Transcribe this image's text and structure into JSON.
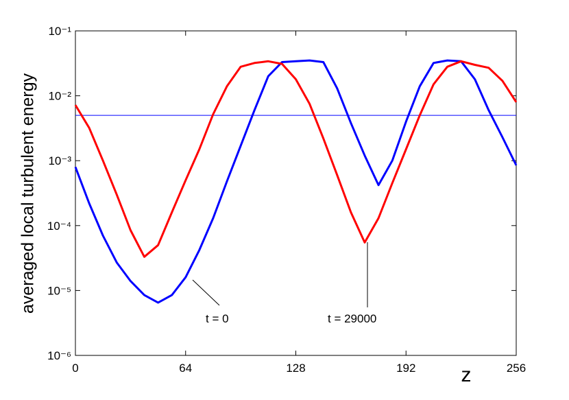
{
  "chart_data": {
    "type": "line",
    "ylabel": "averaged local turbulent energy",
    "xlabel": "z",
    "x": [
      0,
      8,
      16,
      24,
      32,
      40,
      48,
      56,
      64,
      72,
      80,
      88,
      96,
      104,
      112,
      120,
      128,
      136,
      144,
      152,
      160,
      168,
      176,
      184,
      192,
      200,
      208,
      216,
      224,
      232,
      240,
      248,
      256
    ],
    "series": [
      {
        "name": "t = 0",
        "color": "#0000ff",
        "values": [
          0.0008,
          0.00022,
          7e-05,
          2.7e-05,
          1.4e-05,
          8.5e-06,
          6.5e-06,
          8.5e-06,
          1.6e-05,
          4.2e-05,
          0.00013,
          0.00048,
          0.0017,
          0.006,
          0.02,
          0.033,
          0.034,
          0.035,
          0.033,
          0.013,
          0.0038,
          0.0012,
          0.00042,
          0.001,
          0.004,
          0.014,
          0.032,
          0.035,
          0.034,
          0.018,
          0.006,
          0.0023,
          0.00085
        ]
      },
      {
        "name": "t = 29000",
        "color": "#ff0000",
        "values": [
          0.0072,
          0.0032,
          0.001,
          0.0003,
          8.5e-05,
          3.3e-05,
          5e-05,
          0.00016,
          0.0005,
          0.0015,
          0.0052,
          0.014,
          0.028,
          0.032,
          0.034,
          0.031,
          0.018,
          0.0075,
          0.0022,
          0.0006,
          0.00016,
          5.5e-05,
          0.00013,
          0.00045,
          0.0015,
          0.005,
          0.015,
          0.028,
          0.034,
          0.03,
          0.027,
          0.017,
          0.008
        ]
      }
    ],
    "hline": {
      "value": 0.005,
      "color": "#0000ff"
    },
    "xlim": [
      0,
      256
    ],
    "xticks": [
      0,
      64,
      128,
      192,
      256
    ],
    "ylim": [
      1e-06,
      0.1
    ],
    "log_y": true,
    "yticks": [
      {
        "value": 1e-06,
        "label": "10⁻⁶"
      },
      {
        "value": 1e-05,
        "label": "10⁻⁵"
      },
      {
        "value": 0.0001,
        "label": "10⁻⁴"
      },
      {
        "value": 0.001,
        "label": "10⁻³"
      },
      {
        "value": 0.01,
        "label": "10⁻²"
      },
      {
        "value": 0.1,
        "label": "10⁻¹"
      }
    ]
  }
}
